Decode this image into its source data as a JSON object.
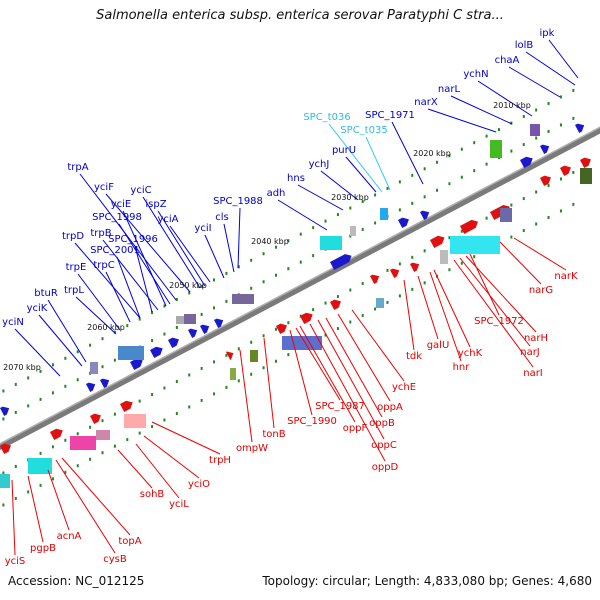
{
  "title": "Salmonella enterica subsp. enterica serovar Paratyphi C stra...",
  "accession": "Accession: NC_012125",
  "summary": "Topology: circular; Length: 4,833,080 bp; Genes: 4,680",
  "colors": {
    "forward_label": "#0000cc",
    "reverse_label": "#dd0000",
    "rna_label": "#33bbdd",
    "leader_line_forward": "#0000dd",
    "leader_line_reverse": "#ee0000",
    "leader_line_rna": "#33ccee",
    "backbone": "#808080",
    "tick_dots": "#228822"
  },
  "kbp_labels": [
    "2010 kbp",
    "2020 kbp",
    "2030 kbp",
    "2040 kbp",
    "2050 kbp",
    "2060 kbp",
    "2070 kbp"
  ],
  "forward_genes": [
    "ipk",
    "lolB",
    "chaA",
    "ychN",
    "narL",
    "narX",
    "SPC_1971",
    "purU",
    "ychJ",
    "hns",
    "adh",
    "SPC_1988",
    "cls",
    "yciI",
    "yciA",
    "ispZ",
    "yciC",
    "yciF",
    "trpA",
    "SPC_1998",
    "yciE",
    "trpB",
    "SPC_1996",
    "trpD",
    "SPC_2001",
    "trpC",
    "trpE",
    "trpL",
    "btuR",
    "yciK",
    "yciN"
  ],
  "rna_genes": [
    "SPC_t036",
    "SPC_t035"
  ],
  "reverse_genes": [
    "narK",
    "narG",
    "SPC_1972",
    "narH",
    "narJ",
    "narI",
    "ychK",
    "hnr",
    "galU",
    "tdk",
    "ychE",
    "oppA",
    "oppB",
    "oppC",
    "oppD",
    "oppF",
    "SPC_1987",
    "SPC_1990",
    "tonB",
    "ompW",
    "trpH",
    "yciO",
    "yciL",
    "sohB",
    "topA",
    "cysB",
    "acnA",
    "pgpB",
    "yciS"
  ]
}
